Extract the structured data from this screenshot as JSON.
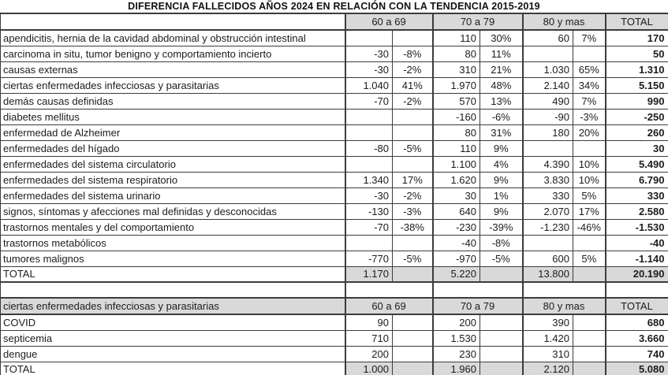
{
  "title": "DIFERENCIA FALLECIDOS AÑOS 2024 EN RELACIÓN CON LA TENDENCIA 2015-2019",
  "columns": {
    "age1": "60 a 69",
    "age2": "70 a 79",
    "age3": "80 y mas",
    "total": "TOTAL"
  },
  "colors": {
    "header_bg": "#d9d9d9",
    "border": "#3c3c3c"
  },
  "table1": {
    "rows": [
      {
        "label": "apendicitis, hernia de la cavidad abdominal y obstrucción intestinal",
        "cells": [
          "",
          "",
          "110",
          "30%",
          "60",
          "7%",
          "170"
        ]
      },
      {
        "label": "carcinoma in situ, tumor benigno y comportamiento incierto",
        "cells": [
          "-30",
          "-8%",
          "80",
          "11%",
          "",
          "",
          "50"
        ]
      },
      {
        "label": "causas externas",
        "cells": [
          "-30",
          "-2%",
          "310",
          "21%",
          "1.030",
          "65%",
          "1.310"
        ]
      },
      {
        "label": "ciertas enfermedades infecciosas y parasitarias",
        "cells": [
          "1.040",
          "41%",
          "1.970",
          "48%",
          "2.140",
          "34%",
          "5.150"
        ]
      },
      {
        "label": "demás causas definidas",
        "cells": [
          "-70",
          "-2%",
          "570",
          "13%",
          "490",
          "7%",
          "990"
        ]
      },
      {
        "label": "diabetes mellitus",
        "cells": [
          "",
          "",
          "-160",
          "-6%",
          "-90",
          "-3%",
          "-250"
        ]
      },
      {
        "label": "enfermedad de Alzheimer",
        "cells": [
          "",
          "",
          "80",
          "31%",
          "180",
          "20%",
          "260"
        ]
      },
      {
        "label": "enfermedades del hígado",
        "cells": [
          "-80",
          "-5%",
          "110",
          "9%",
          "",
          "",
          "30"
        ]
      },
      {
        "label": "enfermedades del sistema circulatorio",
        "cells": [
          "",
          "",
          "1.100",
          "4%",
          "4.390",
          "10%",
          "5.490"
        ]
      },
      {
        "label": "enfermedades del sistema respiratorio",
        "cells": [
          "1.340",
          "17%",
          "1.620",
          "9%",
          "3.830",
          "10%",
          "6.790"
        ]
      },
      {
        "label": "enfermedades del sistema urinario",
        "cells": [
          "-30",
          "-2%",
          "30",
          "1%",
          "330",
          "5%",
          "330"
        ]
      },
      {
        "label": "signos, síntomas y afecciones mal definidas y desconocidas",
        "cells": [
          "-130",
          "-3%",
          "640",
          "9%",
          "2.070",
          "17%",
          "2.580"
        ]
      },
      {
        "label": "trastornos mentales y del comportamiento",
        "cells": [
          "-70",
          "-38%",
          "-230",
          "-39%",
          "-1.230",
          "-46%",
          "-1.530"
        ]
      },
      {
        "label": "trastornos metabólicos",
        "cells": [
          "",
          "",
          "-40",
          "-8%",
          "",
          "",
          "-40"
        ]
      },
      {
        "label": "tumores malignos",
        "cells": [
          "-770",
          "-5%",
          "-970",
          "-5%",
          "600",
          "5%",
          "-1.140"
        ]
      }
    ],
    "total": {
      "label": "TOTAL",
      "cells": [
        "1.170",
        "",
        "5.220",
        "",
        "13.800",
        "",
        "20.190"
      ]
    }
  },
  "table2": {
    "header_label": "ciertas enfermedades infecciosas y parasitarias",
    "rows": [
      {
        "label": "COVID",
        "cells": [
          "90",
          "",
          "200",
          "",
          "390",
          "",
          "680"
        ]
      },
      {
        "label": "septicemia",
        "cells": [
          "710",
          "",
          "1.530",
          "",
          "1.420",
          "",
          "3.660"
        ]
      },
      {
        "label": "dengue",
        "cells": [
          "200",
          "",
          "230",
          "",
          "310",
          "",
          "740"
        ]
      }
    ],
    "total": {
      "label": "TOTAL",
      "cells": [
        "1.000",
        "",
        "1.960",
        "",
        "2.120",
        "",
        "5.080"
      ]
    }
  }
}
